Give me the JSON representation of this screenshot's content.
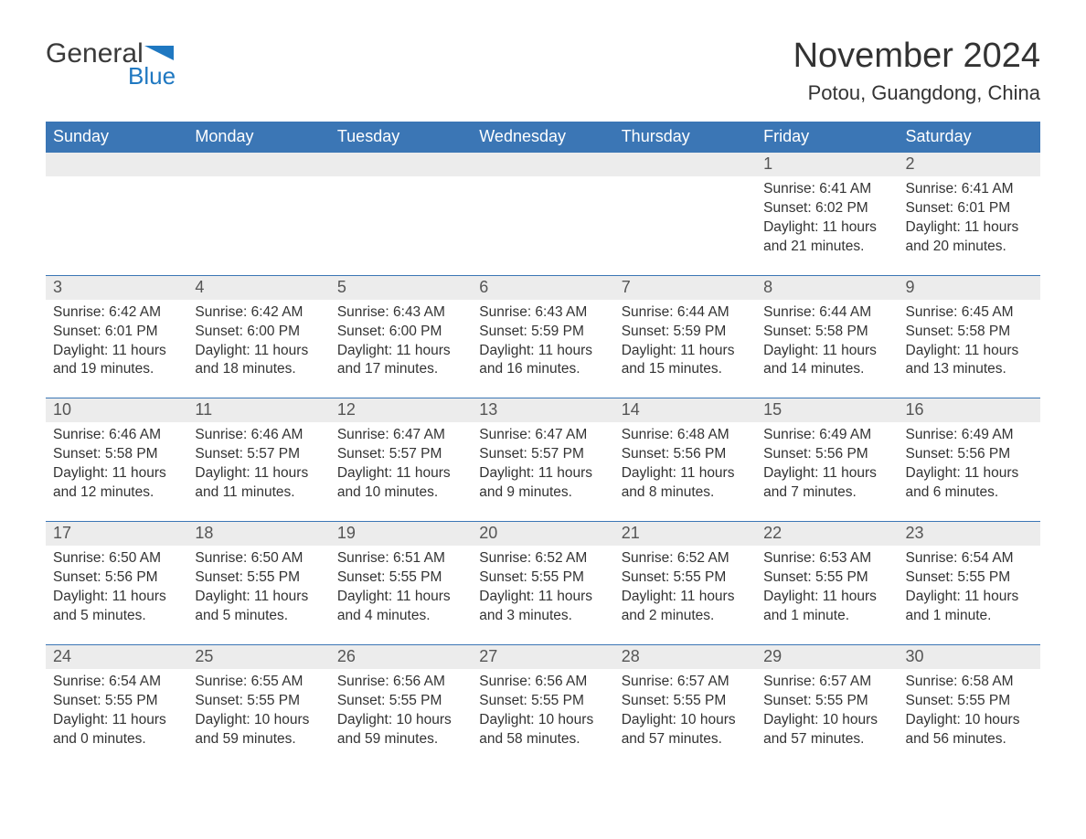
{
  "logo": {
    "text_general": "General",
    "text_blue": "Blue"
  },
  "title": "November 2024",
  "location": "Potou, Guangdong, China",
  "colors": {
    "header_bg": "#3b76b5",
    "header_text": "#ffffff",
    "day_header_bg": "#ececec",
    "day_header_text": "#555555",
    "body_text": "#333333",
    "row_border": "#3b76b5",
    "background": "#ffffff",
    "logo_general": "#3a3a3a",
    "logo_blue": "#1f78c1"
  },
  "daysOfWeek": [
    "Sunday",
    "Monday",
    "Tuesday",
    "Wednesday",
    "Thursday",
    "Friday",
    "Saturday"
  ],
  "weeks": [
    [
      null,
      null,
      null,
      null,
      null,
      {
        "n": "1",
        "sunrise": "Sunrise: 6:41 AM",
        "sunset": "Sunset: 6:02 PM",
        "daylight": "Daylight: 11 hours and 21 minutes."
      },
      {
        "n": "2",
        "sunrise": "Sunrise: 6:41 AM",
        "sunset": "Sunset: 6:01 PM",
        "daylight": "Daylight: 11 hours and 20 minutes."
      }
    ],
    [
      {
        "n": "3",
        "sunrise": "Sunrise: 6:42 AM",
        "sunset": "Sunset: 6:01 PM",
        "daylight": "Daylight: 11 hours and 19 minutes."
      },
      {
        "n": "4",
        "sunrise": "Sunrise: 6:42 AM",
        "sunset": "Sunset: 6:00 PM",
        "daylight": "Daylight: 11 hours and 18 minutes."
      },
      {
        "n": "5",
        "sunrise": "Sunrise: 6:43 AM",
        "sunset": "Sunset: 6:00 PM",
        "daylight": "Daylight: 11 hours and 17 minutes."
      },
      {
        "n": "6",
        "sunrise": "Sunrise: 6:43 AM",
        "sunset": "Sunset: 5:59 PM",
        "daylight": "Daylight: 11 hours and 16 minutes."
      },
      {
        "n": "7",
        "sunrise": "Sunrise: 6:44 AM",
        "sunset": "Sunset: 5:59 PM",
        "daylight": "Daylight: 11 hours and 15 minutes."
      },
      {
        "n": "8",
        "sunrise": "Sunrise: 6:44 AM",
        "sunset": "Sunset: 5:58 PM",
        "daylight": "Daylight: 11 hours and 14 minutes."
      },
      {
        "n": "9",
        "sunrise": "Sunrise: 6:45 AM",
        "sunset": "Sunset: 5:58 PM",
        "daylight": "Daylight: 11 hours and 13 minutes."
      }
    ],
    [
      {
        "n": "10",
        "sunrise": "Sunrise: 6:46 AM",
        "sunset": "Sunset: 5:58 PM",
        "daylight": "Daylight: 11 hours and 12 minutes."
      },
      {
        "n": "11",
        "sunrise": "Sunrise: 6:46 AM",
        "sunset": "Sunset: 5:57 PM",
        "daylight": "Daylight: 11 hours and 11 minutes."
      },
      {
        "n": "12",
        "sunrise": "Sunrise: 6:47 AM",
        "sunset": "Sunset: 5:57 PM",
        "daylight": "Daylight: 11 hours and 10 minutes."
      },
      {
        "n": "13",
        "sunrise": "Sunrise: 6:47 AM",
        "sunset": "Sunset: 5:57 PM",
        "daylight": "Daylight: 11 hours and 9 minutes."
      },
      {
        "n": "14",
        "sunrise": "Sunrise: 6:48 AM",
        "sunset": "Sunset: 5:56 PM",
        "daylight": "Daylight: 11 hours and 8 minutes."
      },
      {
        "n": "15",
        "sunrise": "Sunrise: 6:49 AM",
        "sunset": "Sunset: 5:56 PM",
        "daylight": "Daylight: 11 hours and 7 minutes."
      },
      {
        "n": "16",
        "sunrise": "Sunrise: 6:49 AM",
        "sunset": "Sunset: 5:56 PM",
        "daylight": "Daylight: 11 hours and 6 minutes."
      }
    ],
    [
      {
        "n": "17",
        "sunrise": "Sunrise: 6:50 AM",
        "sunset": "Sunset: 5:56 PM",
        "daylight": "Daylight: 11 hours and 5 minutes."
      },
      {
        "n": "18",
        "sunrise": "Sunrise: 6:50 AM",
        "sunset": "Sunset: 5:55 PM",
        "daylight": "Daylight: 11 hours and 5 minutes."
      },
      {
        "n": "19",
        "sunrise": "Sunrise: 6:51 AM",
        "sunset": "Sunset: 5:55 PM",
        "daylight": "Daylight: 11 hours and 4 minutes."
      },
      {
        "n": "20",
        "sunrise": "Sunrise: 6:52 AM",
        "sunset": "Sunset: 5:55 PM",
        "daylight": "Daylight: 11 hours and 3 minutes."
      },
      {
        "n": "21",
        "sunrise": "Sunrise: 6:52 AM",
        "sunset": "Sunset: 5:55 PM",
        "daylight": "Daylight: 11 hours and 2 minutes."
      },
      {
        "n": "22",
        "sunrise": "Sunrise: 6:53 AM",
        "sunset": "Sunset: 5:55 PM",
        "daylight": "Daylight: 11 hours and 1 minute."
      },
      {
        "n": "23",
        "sunrise": "Sunrise: 6:54 AM",
        "sunset": "Sunset: 5:55 PM",
        "daylight": "Daylight: 11 hours and 1 minute."
      }
    ],
    [
      {
        "n": "24",
        "sunrise": "Sunrise: 6:54 AM",
        "sunset": "Sunset: 5:55 PM",
        "daylight": "Daylight: 11 hours and 0 minutes."
      },
      {
        "n": "25",
        "sunrise": "Sunrise: 6:55 AM",
        "sunset": "Sunset: 5:55 PM",
        "daylight": "Daylight: 10 hours and 59 minutes."
      },
      {
        "n": "26",
        "sunrise": "Sunrise: 6:56 AM",
        "sunset": "Sunset: 5:55 PM",
        "daylight": "Daylight: 10 hours and 59 minutes."
      },
      {
        "n": "27",
        "sunrise": "Sunrise: 6:56 AM",
        "sunset": "Sunset: 5:55 PM",
        "daylight": "Daylight: 10 hours and 58 minutes."
      },
      {
        "n": "28",
        "sunrise": "Sunrise: 6:57 AM",
        "sunset": "Sunset: 5:55 PM",
        "daylight": "Daylight: 10 hours and 57 minutes."
      },
      {
        "n": "29",
        "sunrise": "Sunrise: 6:57 AM",
        "sunset": "Sunset: 5:55 PM",
        "daylight": "Daylight: 10 hours and 57 minutes."
      },
      {
        "n": "30",
        "sunrise": "Sunrise: 6:58 AM",
        "sunset": "Sunset: 5:55 PM",
        "daylight": "Daylight: 10 hours and 56 minutes."
      }
    ]
  ]
}
